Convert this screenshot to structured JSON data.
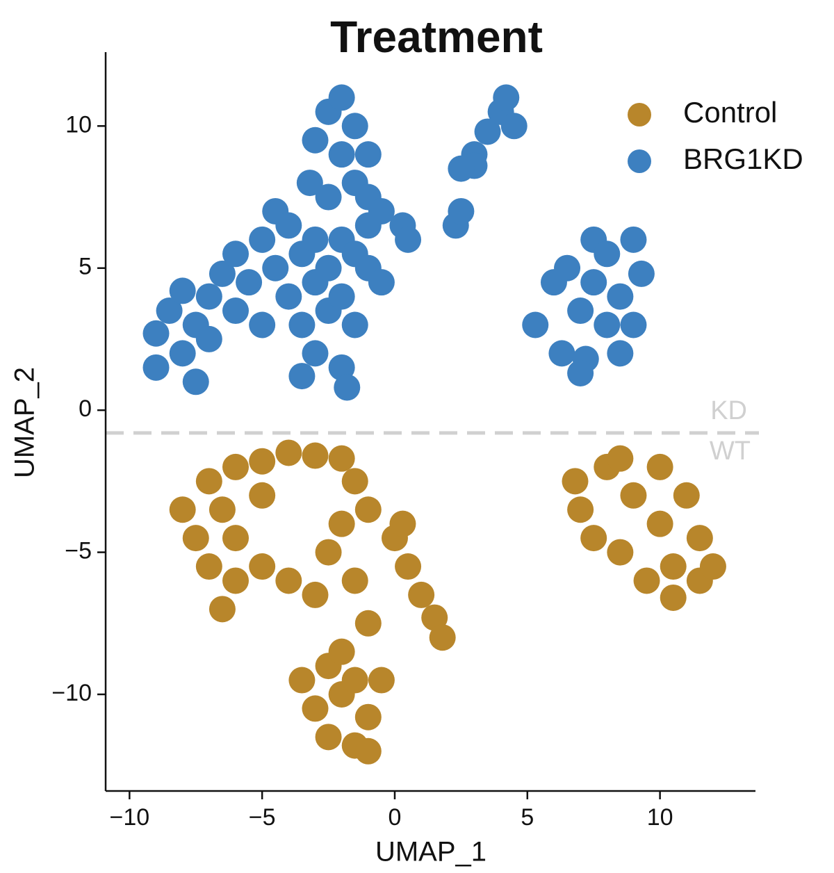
{
  "chart_data": {
    "type": "scatter",
    "title": "Treatment",
    "x_label": "UMAP_1",
    "y_label": "UMAP_2",
    "xlim": [
      -10.9,
      13.6
    ],
    "ylim": [
      -13.4,
      12.6
    ],
    "xticks": [
      {
        "value": -10,
        "label": "−10"
      },
      {
        "value": -5,
        "label": "−5"
      },
      0,
      5,
      10
    ],
    "yticks": [
      {
        "value": -10,
        "label": "−10"
      },
      {
        "value": -5,
        "label": "−5"
      },
      0,
      5,
      10
    ],
    "legend": "top-right",
    "hline": {
      "value": -0.8,
      "color": "#d0d0d0",
      "labels": [
        "KD",
        "WT"
      ]
    },
    "series": [
      {
        "name": "Control",
        "color": "#b8862b",
        "x": [
          -8,
          -7.5,
          -7,
          -7,
          -6.5,
          -6.5,
          -6,
          -6,
          -6,
          -5,
          -5,
          -4,
          -3,
          -2,
          -1.5,
          -1,
          -5,
          -4,
          -3,
          -2.5,
          -2,
          -1.5,
          -1,
          0,
          0.5,
          1,
          1.5,
          1.8,
          0.3,
          -3.5,
          -3,
          -2.5,
          -2.5,
          -2,
          -1.5,
          -1.5,
          -1,
          -0.5,
          -1,
          -2,
          6.8,
          7,
          7.5,
          8,
          8.5,
          9,
          9.5,
          10,
          10,
          10.5,
          11,
          11.5,
          11.5,
          12,
          10.5,
          8.5
        ],
        "values": [
          -3.5,
          -4.5,
          -2.5,
          -5.5,
          -3.5,
          -7,
          -2,
          -4.5,
          -6,
          -1.8,
          -3,
          -1.5,
          -1.6,
          -1.7,
          -2.5,
          -3.5,
          -5.5,
          -6,
          -6.5,
          -5,
          -4,
          -6,
          -7.5,
          -4.5,
          -5.5,
          -6.5,
          -7.3,
          -8,
          -4,
          -9.5,
          -10.5,
          -9,
          -11.5,
          -10,
          -11.8,
          -9.5,
          -10.8,
          -9.5,
          -12,
          -8.5,
          -2.5,
          -3.5,
          -4.5,
          -2,
          -5,
          -3,
          -6,
          -2,
          -4,
          -5.5,
          -3,
          -4.5,
          -6,
          -5.5,
          -6.6,
          -1.7
        ]
      },
      {
        "name": "BRG1KD",
        "color": "#3d80c0",
        "x": [
          -9,
          -9,
          -8.5,
          -8,
          -8,
          -7.5,
          -7.5,
          -7,
          -7,
          -6.5,
          -6,
          -6,
          -5.5,
          -5,
          -5,
          -4.5,
          -4.5,
          -4,
          -4,
          -3.5,
          -3.5,
          -3,
          -3,
          -3,
          -2.5,
          -2.5,
          -2,
          -2,
          -2,
          -1.5,
          -1.5,
          -1,
          -1,
          -0.5,
          -3.5,
          -1.8,
          -3.2,
          -3,
          -2.5,
          -2,
          -1.5,
          -2,
          -1.5,
          -2.5,
          -1,
          -0.5,
          0.3,
          0.5,
          -1,
          3,
          3.5,
          4,
          4.2,
          3,
          4.5,
          2.5,
          2.3,
          2.5,
          5.3,
          6,
          6.3,
          6.5,
          7,
          7.2,
          7.5,
          7.5,
          8,
          8,
          8.5,
          8.5,
          9,
          9,
          9.3,
          7
        ],
        "values": [
          1.5,
          2.7,
          3.5,
          2,
          4.2,
          1,
          3,
          4,
          2.5,
          4.8,
          3.5,
          5.5,
          4.5,
          6,
          3,
          7,
          5,
          6.5,
          4,
          5.5,
          3,
          6,
          4.5,
          2,
          5,
          3.5,
          6,
          4,
          1.5,
          5.5,
          3,
          5,
          6.5,
          4.5,
          1.2,
          0.8,
          8,
          9.5,
          10.5,
          11,
          10,
          9,
          8,
          7.5,
          7.5,
          7,
          6.5,
          6,
          9,
          9,
          9.8,
          10.5,
          11,
          8.6,
          10,
          8.5,
          6.5,
          7,
          3,
          4.5,
          2,
          5,
          3.5,
          1.8,
          6,
          4.5,
          3,
          5.5,
          2,
          4,
          6,
          3,
          4.8,
          1.3
        ]
      }
    ]
  }
}
